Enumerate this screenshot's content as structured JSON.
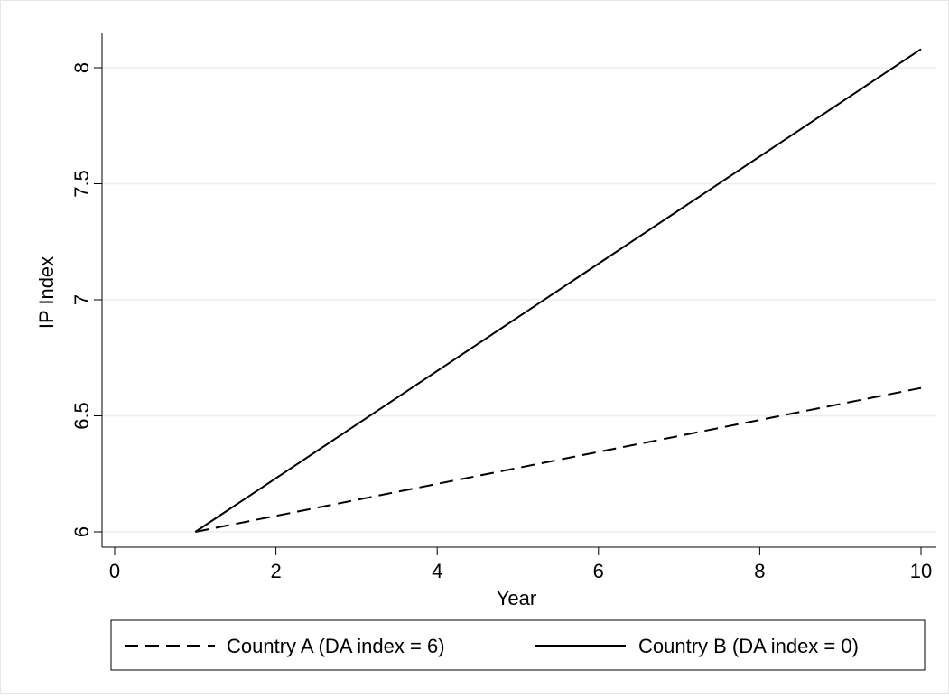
{
  "chart_data": {
    "type": "line",
    "xlabel": "Year",
    "ylabel": "IP Index",
    "xlim": [
      0,
      10
    ],
    "ylim": [
      6,
      8
    ],
    "x_ticks": [
      0,
      2,
      4,
      6,
      8,
      10
    ],
    "y_ticks": [
      6,
      6.5,
      7,
      7.5,
      8
    ],
    "x_tick_labels": [
      "0",
      "2",
      "4",
      "6",
      "8",
      "10"
    ],
    "y_tick_labels": [
      "6",
      "6.5",
      "7",
      "7.5",
      "8"
    ],
    "grid": "horizontal",
    "legend_position": "bottom",
    "series": [
      {
        "name": "Country A (DA index = 6)",
        "style": "dashed",
        "color": "#000000",
        "x": [
          1,
          10
        ],
        "y": [
          6.0,
          6.62
        ]
      },
      {
        "name": "Country B (DA index = 0)",
        "style": "solid",
        "color": "#000000",
        "x": [
          1,
          10
        ],
        "y": [
          6.0,
          8.08
        ]
      }
    ]
  }
}
